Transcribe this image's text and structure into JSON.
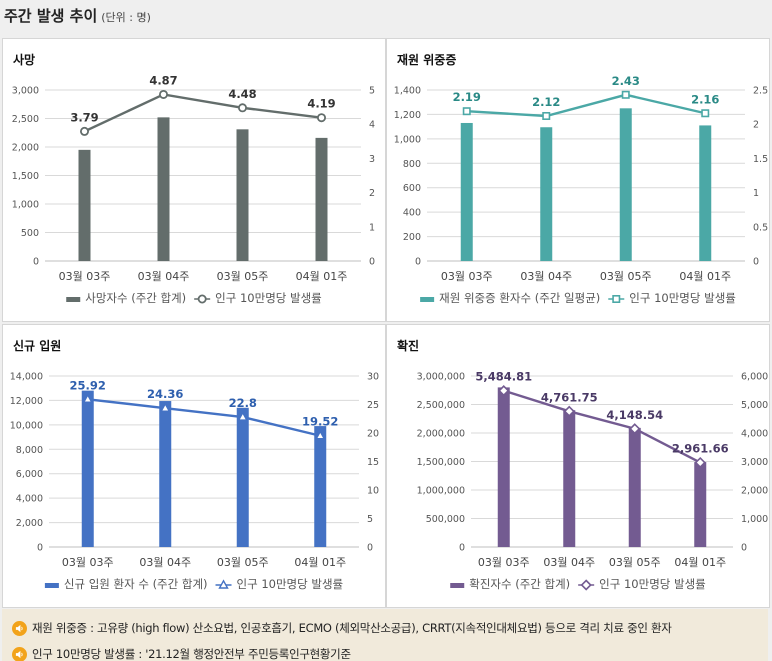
{
  "header": {
    "title": "주간 발생 추이",
    "unit": "(단위 : 명)"
  },
  "chart_data": [
    {
      "id": "deaths",
      "type": "bar+line",
      "title": "사망",
      "categories": [
        "03월 03주",
        "03월 04주",
        "03월 05주",
        "04월 01주"
      ],
      "bar_series": {
        "name": "사망자수 (주간 합계)",
        "values": [
          1950,
          2520,
          2310,
          2160
        ],
        "color": "#636d6b"
      },
      "line_series": {
        "name": "인구 10만명당 발생률",
        "values": [
          3.79,
          4.87,
          4.48,
          4.19
        ],
        "labels": [
          "3.79",
          "4.87",
          "4.48",
          "4.19"
        ],
        "color": "#636d6b",
        "marker": "circle",
        "label_color": "#333333"
      },
      "left_axis": {
        "min": 0,
        "max": 3000,
        "ticks": [
          0,
          500,
          1000,
          1500,
          2000,
          2500,
          3000
        ],
        "tick_labels": [
          "0",
          "500",
          "1,000",
          "1,500",
          "2,000",
          "2,500",
          "3,000"
        ]
      },
      "right_axis": {
        "min": 0,
        "max": 5,
        "ticks": [
          0,
          1,
          2,
          3,
          4,
          5
        ],
        "tick_labels": [
          "0",
          "1",
          "2",
          "3",
          "4",
          "5"
        ]
      },
      "grid": true
    },
    {
      "id": "severe",
      "type": "bar+line",
      "title": "재원 위중증",
      "categories": [
        "03월 03주",
        "03월 04주",
        "03월 05주",
        "04월 01주"
      ],
      "bar_series": {
        "name": "재원 위중증 환자수 (주간 일평균)",
        "values": [
          1130,
          1095,
          1250,
          1110
        ],
        "color": "#4ba8a6"
      },
      "line_series": {
        "name": "인구 10만명당 발생률",
        "values": [
          2.19,
          2.12,
          2.43,
          2.16
        ],
        "labels": [
          "2.19",
          "2.12",
          "2.43",
          "2.16"
        ],
        "color": "#4ba8a6",
        "marker": "square",
        "label_color": "#2a8a86"
      },
      "left_axis": {
        "min": 0,
        "max": 1400,
        "ticks": [
          0,
          200,
          400,
          600,
          800,
          1000,
          1200,
          1400
        ],
        "tick_labels": [
          "0",
          "200",
          "400",
          "600",
          "800",
          "1,000",
          "1,200",
          "1,400"
        ]
      },
      "right_axis": {
        "min": 0,
        "max": 2.5,
        "ticks": [
          0,
          0.5,
          1,
          1.5,
          2,
          2.5
        ],
        "tick_labels": [
          "0",
          "0.5",
          "1",
          "1.5",
          "2",
          "2.5"
        ]
      },
      "grid": true
    },
    {
      "id": "admission",
      "type": "bar+line",
      "title": "신규 입원",
      "categories": [
        "03월 03주",
        "03월 04주",
        "03월 05주",
        "04월 01주"
      ],
      "bar_series": {
        "name": "신규 입원 환자 수 (주간 합계)",
        "values": [
          12800,
          11950,
          11400,
          9900
        ],
        "color": "#4472c4"
      },
      "line_series": {
        "name": "인구 10만명당 발생률",
        "values": [
          25.92,
          24.36,
          22.8,
          19.52
        ],
        "labels": [
          "25.92",
          "24.36",
          "22.8",
          "19.52"
        ],
        "color": "#4472c4",
        "marker": "triangle",
        "label_color": "#2e5fae"
      },
      "left_axis": {
        "min": 0,
        "max": 14000,
        "ticks": [
          0,
          2000,
          4000,
          6000,
          8000,
          10000,
          12000,
          14000
        ],
        "tick_labels": [
          "0",
          "2,000",
          "4,000",
          "6,000",
          "8,000",
          "10,000",
          "12,000",
          "14,000"
        ]
      },
      "right_axis": {
        "min": 0,
        "max": 30,
        "ticks": [
          0,
          5,
          10,
          15,
          20,
          25,
          30
        ],
        "tick_labels": [
          "0",
          "5",
          "10",
          "15",
          "20",
          "25",
          "30"
        ]
      },
      "grid": true
    },
    {
      "id": "confirmed",
      "type": "bar+line",
      "title": "확진",
      "categories": [
        "03월 03주",
        "03월 04주",
        "03월 05주",
        "04월 01주"
      ],
      "bar_series": {
        "name": "확진자수 (주간 합계)",
        "values": [
          2800000,
          2400000,
          2090000,
          1490000
        ],
        "color": "#735b91"
      },
      "line_series": {
        "name": "인구 10만명당 발생률",
        "values": [
          5484.81,
          4761.75,
          4148.54,
          2961.66
        ],
        "labels": [
          "5,484.81",
          "4,761.75",
          "4,148.54",
          "2,961.66"
        ],
        "color": "#735b91",
        "marker": "diamond",
        "label_color": "#4a3a66"
      },
      "left_axis": {
        "min": 0,
        "max": 3000000,
        "ticks": [
          0,
          500000,
          1000000,
          1500000,
          2000000,
          2500000,
          3000000
        ],
        "tick_labels": [
          "0",
          "500,000",
          "1,000,000",
          "1,500,000",
          "2,000,000",
          "2,500,000",
          "3,000,000"
        ]
      },
      "right_axis": {
        "min": 0,
        "max": 6000,
        "ticks": [
          0,
          1000,
          2000,
          3000,
          4000,
          5000,
          6000
        ],
        "tick_labels": [
          "0",
          "1,000",
          "2,000",
          "3,000",
          "4,000",
          "5,000",
          "6,000"
        ]
      },
      "grid": true
    }
  ],
  "notes": [
    {
      "icon": "speaker-icon",
      "text": "재원 위중증 : 고유량 (high flow) 산소요법, 인공호흡기, ECMO (체외막산소공급), CRRT(지속적인대체요법) 등으로 격리 치료 중인 환자"
    },
    {
      "icon": "speaker-icon",
      "text": "인구 10만명당 발생률 : '21.12월 행정안전부 주민등록인구현황기준"
    }
  ],
  "colors": {
    "note_bg": "#f1eadb",
    "note_icon": "#f2a31b",
    "grid": "#d9d9d9"
  }
}
